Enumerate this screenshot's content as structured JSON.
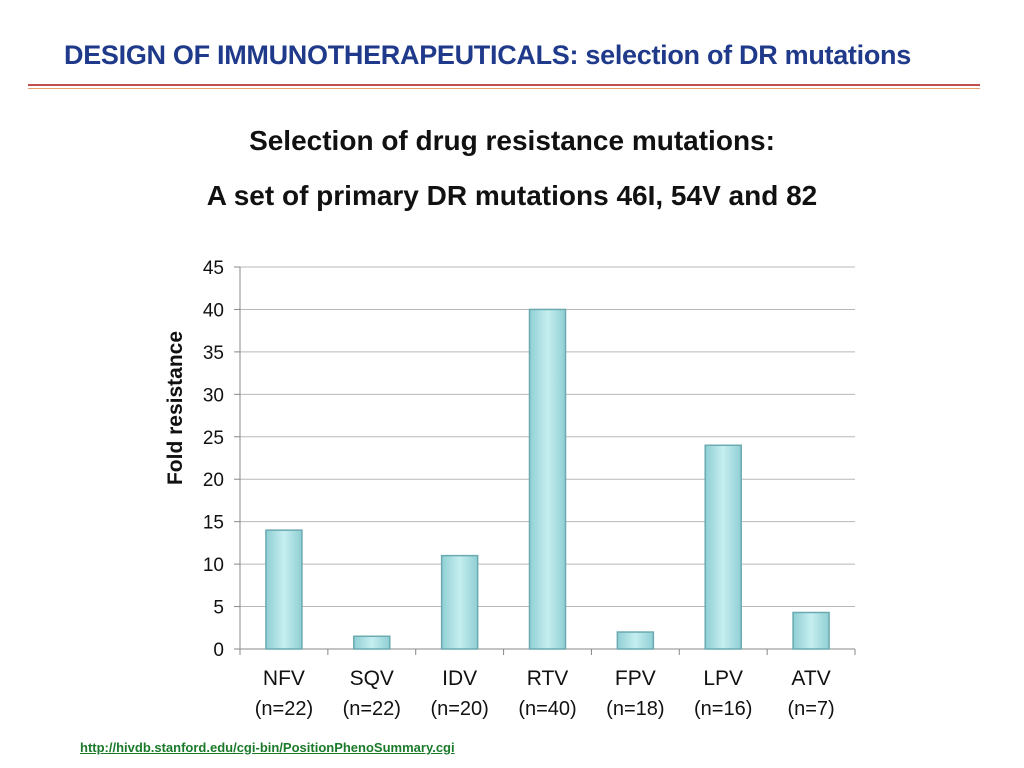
{
  "slide": {
    "title": "DESIGN OF IMMUNOTHERAPEUTICALS: selection of DR mutations",
    "subtitle_line1": "Selection of drug resistance mutations:",
    "subtitle_line2": "A set of primary DR mutations 46I, 54V and 82",
    "source_link": "http://hivdb.stanford.edu/cgi-bin/PositionPhenoSummary.cgi"
  },
  "colors": {
    "title": "#1f3a8a",
    "bar_fill": "#a8dde0",
    "bar_edge": "#6aaab0",
    "link": "#1a7a2a"
  },
  "chart_data": {
    "type": "bar",
    "categories": [
      "NFV",
      "SQV",
      "IDV",
      "RTV",
      "FPV",
      "LPV",
      "ATV"
    ],
    "category_counts": [
      "(n=22)",
      "(n=22)",
      "(n=20)",
      "(n=40)",
      "(n=18)",
      "(n=16)",
      "(n=7)"
    ],
    "values": [
      14,
      1.5,
      11,
      40,
      2,
      24,
      4.3
    ],
    "ylabel": "Fold resistance",
    "xlabel": "",
    "ylim": [
      0,
      45
    ],
    "yticks": [
      0,
      5,
      10,
      15,
      20,
      25,
      30,
      35,
      40,
      45
    ],
    "grid": true,
    "legend": "none"
  }
}
